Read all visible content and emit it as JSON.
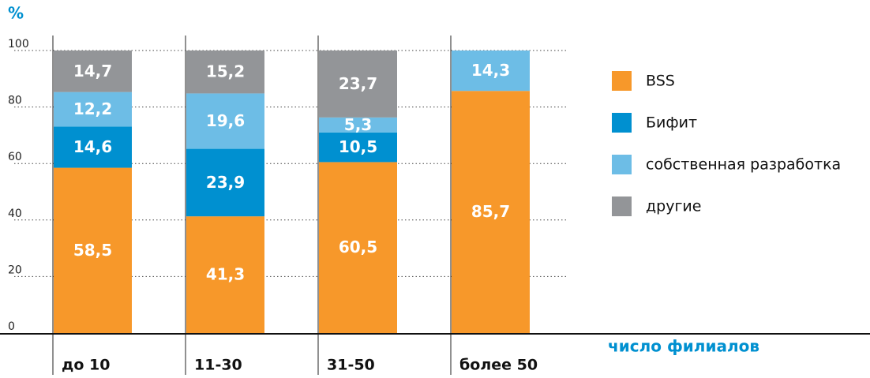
{
  "chart_data": {
    "type": "stacked-bar",
    "y_label": "%",
    "x_label": "число филиалов",
    "categories": [
      "до 10",
      "11-30",
      "31-50",
      "более 50"
    ],
    "series": [
      {
        "name": "BSS",
        "color": "#f7982a",
        "values": [
          58.5,
          41.3,
          60.5,
          85.7
        ],
        "value_labels": [
          "58,5",
          "41,3",
          "60,5",
          "85,7"
        ]
      },
      {
        "name": "Бифит",
        "color": "#0090d0",
        "values": [
          14.6,
          23.9,
          10.5,
          null
        ],
        "value_labels": [
          "14,6",
          "23,9",
          "10,5",
          null
        ]
      },
      {
        "name": "собственная разработка",
        "color": "#6dbde6",
        "values": [
          12.2,
          19.6,
          5.3,
          14.3
        ],
        "value_labels": [
          "12,2",
          "19,6",
          "5,3",
          "14,3"
        ]
      },
      {
        "name": "другие",
        "color": "#939598",
        "values": [
          14.7,
          15.2,
          23.7,
          null
        ],
        "value_labels": [
          "14,7",
          "15,2",
          "23,7",
          null
        ]
      }
    ],
    "ylim": [
      0,
      100
    ],
    "yticks": [
      0,
      20,
      40,
      60,
      80,
      100
    ],
    "grid": true
  }
}
